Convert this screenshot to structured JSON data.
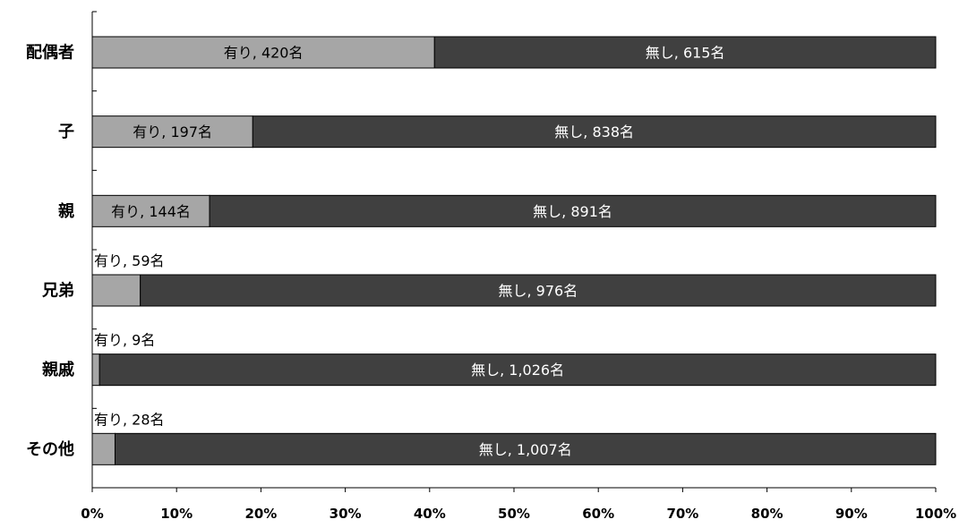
{
  "chart_data": {
    "type": "bar",
    "orientation": "horizontal",
    "stacked": "percent",
    "categories": [
      "配偶者",
      "子",
      "親",
      "兄弟",
      "親戚",
      "その他"
    ],
    "series": [
      {
        "name": "有り",
        "values": [
          420,
          197,
          144,
          59,
          9,
          28
        ],
        "labels": [
          "有り, 420名",
          "有り, 197名",
          "有り, 144名",
          "有り, 59名",
          "有り, 9名",
          "有り, 28名"
        ],
        "color": "#a6a6a6"
      },
      {
        "name": "無し",
        "values": [
          615,
          838,
          891,
          976,
          1026,
          1007
        ],
        "labels": [
          "無し, 615名",
          "無し, 838名",
          "無し, 891名",
          "無し, 976名",
          "無し, 1,026名",
          "無し, 1,007名"
        ],
        "color": "#404040"
      }
    ],
    "xlim": [
      0,
      100
    ],
    "xticks": [
      0,
      10,
      20,
      30,
      40,
      50,
      60,
      70,
      80,
      90,
      100
    ],
    "xtick_labels": [
      "0%",
      "10%",
      "20%",
      "30%",
      "40%",
      "50%",
      "60%",
      "70%",
      "80%",
      "90%",
      "100%"
    ],
    "legend": "none",
    "grid": false
  }
}
